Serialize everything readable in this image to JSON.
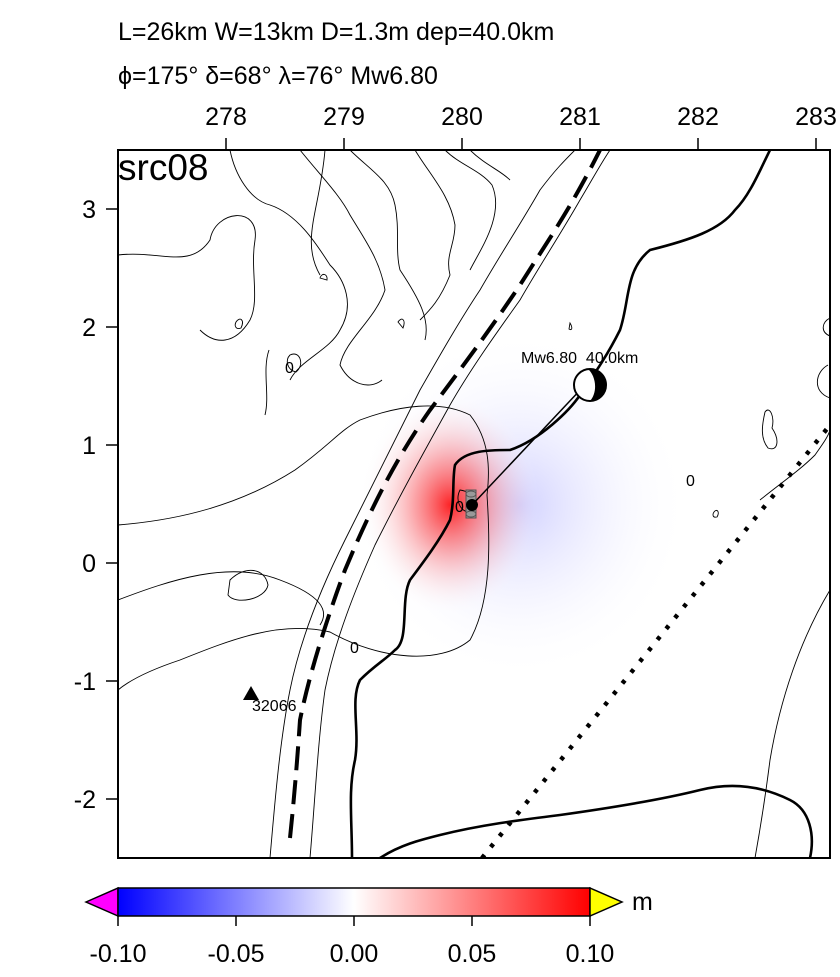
{
  "header": {
    "line1": "L=26km W=13km D=1.3m dep=40.0km",
    "line2": "ϕ=175° δ=68° λ=76° Mw6.80"
  },
  "panel_label": "src08",
  "x_ticks": [
    "278",
    "279",
    "280",
    "281",
    "282",
    "283"
  ],
  "y_ticks": [
    "3",
    "2",
    "1",
    "0",
    "-1",
    "-2"
  ],
  "contour_labels": [
    "0",
    "0",
    "0",
    "0"
  ],
  "mechanism_label": "Mw6.80  40.0km",
  "station": {
    "id": "32066"
  },
  "colorbar": {
    "unit": "m",
    "ticks": [
      "-0.10",
      "-0.05",
      "0.00",
      "0.05",
      "0.10"
    ]
  },
  "colors": {
    "positive": "#ff0000",
    "negative": "#0000ff",
    "under": "#ff00ff",
    "over": "#ffff00"
  }
}
